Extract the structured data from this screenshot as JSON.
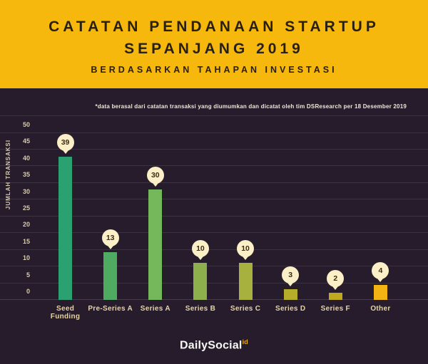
{
  "header": {
    "title_line1": "CATATAN PENDANAAN STARTUP",
    "title_line2": "SEPANJANG 2019",
    "subtitle": "BERDASARKAN TAHAPAN INVESTASI"
  },
  "note": "*data berasal dari catatan transaksi yang diumumkan dan dicatat oleh tim DSResearch per 18 Desember 2019",
  "chart_data": {
    "type": "bar",
    "title": "Catatan Pendanaan Startup Sepanjang 2019 Berdasarkan Tahapan Investasi",
    "categories": [
      "Seed Funding",
      "Pre-Series A",
      "Series A",
      "Series B",
      "Series C",
      "Series D",
      "Series F",
      "Other"
    ],
    "values": [
      39,
      13,
      30,
      10,
      10,
      3,
      2,
      4
    ],
    "xlabel": "",
    "ylabel": "JUMLAH TRANSAKSI",
    "yticks": [
      0,
      5,
      10,
      15,
      20,
      25,
      30,
      35,
      40,
      45,
      50
    ],
    "ylim": [
      0,
      50
    ],
    "grid": true,
    "legend": false,
    "bar_colors": [
      "#2BA171",
      "#4FAB61",
      "#75B75B",
      "#8DB04D",
      "#A7B23E",
      "#B6AE2B",
      "#BFA91F",
      "#F2B313"
    ],
    "value_badge_bg": "#FBEFC7",
    "value_badge_text": "#3A2A12"
  },
  "colors": {
    "header_bg": "#F7B80E",
    "header_text": "#272013",
    "body_bg": "#261C2B",
    "gridline": "#3B3242",
    "tick_text": "#D8CCAF",
    "category_text": "#E6D4A6",
    "note_text": "#EDE6D9",
    "logo_text": "#FAF8F5",
    "logo_suffix": "#F0A91C"
  },
  "footer": {
    "logo_text": "DailySocial",
    "logo_suffix": "id"
  }
}
